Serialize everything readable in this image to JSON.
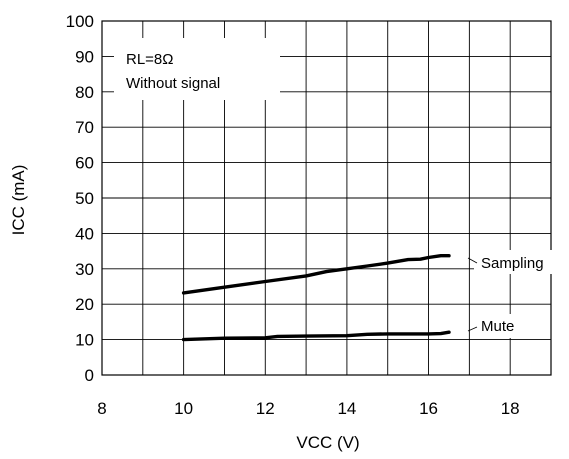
{
  "chart_data": {
    "type": "line",
    "title": "",
    "xlabel": "VCC (V)",
    "ylabel": "ICC (mA)",
    "xlim": [
      8,
      19
    ],
    "ylim": [
      0,
      100
    ],
    "x_ticks": [
      8,
      10,
      12,
      14,
      16,
      18
    ],
    "y_ticks": [
      0,
      10,
      20,
      30,
      40,
      50,
      60,
      70,
      80,
      90,
      100
    ],
    "grid": true,
    "annotations": [
      "RL=8Ω",
      "Without signal"
    ],
    "series": [
      {
        "name": "Sampling",
        "x": [
          10,
          11,
          12,
          13,
          13.5,
          14,
          14.5,
          15,
          15.5,
          15.8,
          16,
          16.3,
          16.5
        ],
        "y": [
          23.2,
          24.8,
          26.4,
          28.0,
          29.2,
          30.0,
          30.8,
          31.6,
          32.6,
          32.7,
          33.2,
          33.7,
          33.7
        ]
      },
      {
        "name": "Mute",
        "x": [
          10,
          11,
          12,
          12.3,
          13,
          14,
          14.5,
          15,
          16,
          16.3,
          16.5
        ],
        "y": [
          10.0,
          10.4,
          10.5,
          10.9,
          11.0,
          11.1,
          11.5,
          11.6,
          11.6,
          11.7,
          12.1
        ]
      }
    ]
  }
}
